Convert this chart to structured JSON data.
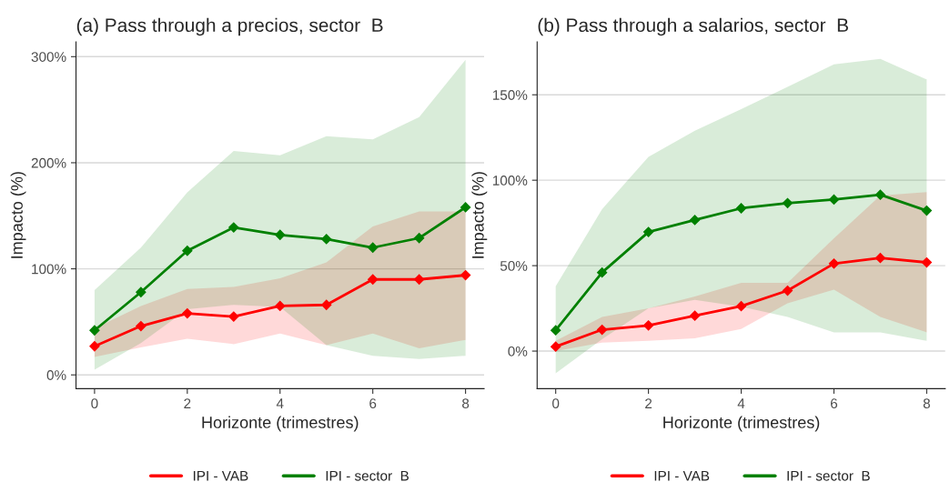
{
  "chart_data": [
    {
      "type": "line",
      "title": "(a) Pass through a precios, sector  B",
      "xlabel": "Horizonte (trimestres)",
      "ylabel": "Impacto (%)",
      "x": [
        0,
        1,
        2,
        3,
        4,
        5,
        6,
        7,
        8
      ],
      "series": [
        {
          "name": "IPI - VAB",
          "color": "#ff0000",
          "values": [
            27,
            46,
            58,
            55,
            65,
            66,
            90,
            90,
            94
          ],
          "lower": [
            17,
            26,
            34,
            29,
            39,
            28,
            39,
            25,
            33
          ],
          "upper": [
            44,
            65,
            81,
            83,
            91,
            106,
            140,
            154,
            154
          ]
        },
        {
          "name": "IPI - sector  B",
          "color": "#008000",
          "values": [
            42,
            78,
            117,
            139,
            132,
            128,
            120,
            129,
            158
          ],
          "lower": [
            5,
            30,
            62,
            66,
            64,
            28,
            18,
            15,
            18
          ],
          "upper": [
            80,
            120,
            172,
            211,
            207,
            225,
            222,
            243,
            297
          ]
        }
      ],
      "xlim": [
        -0.4,
        8.4
      ],
      "xticks": [
        0,
        2,
        4,
        6,
        8
      ],
      "ylim": [
        -13,
        314
      ],
      "yticks": [
        {
          "value": 0,
          "label": "0%"
        },
        {
          "value": 100,
          "label": "100%"
        },
        {
          "value": 200,
          "label": "200%"
        },
        {
          "value": 300,
          "label": "300%"
        }
      ],
      "grid": "y",
      "legend": "bottom",
      "marker": "diamond",
      "line_style": "solid"
    },
    {
      "type": "line",
      "title": "(b) Pass through a salarios, sector  B",
      "xlabel": "Horizonte (trimestres)",
      "ylabel": "Impacto (%)",
      "x": [
        0,
        1,
        2,
        3,
        4,
        5,
        6,
        7,
        8
      ],
      "series": [
        {
          "name": "IPI - VAB",
          "color": "#ff0000",
          "values": [
            2.6,
            12.5,
            15,
            20.7,
            26.3,
            35.4,
            51.2,
            54.5,
            51.9
          ],
          "lower": [
            0,
            5,
            6,
            7.5,
            13,
            28,
            36,
            20,
            11
          ],
          "upper": [
            6,
            20,
            25,
            32,
            40,
            40,
            66,
            91,
            93
          ]
        },
        {
          "name": "IPI - sector  B",
          "color": "#008000",
          "values": [
            12.2,
            46,
            69.7,
            76.7,
            83.6,
            86.6,
            88.7,
            91.5,
            82.2
          ],
          "lower": [
            -13,
            7,
            25,
            30,
            26,
            20,
            11,
            11,
            6
          ],
          "upper": [
            38,
            83,
            113.6,
            129,
            141.6,
            154.7,
            167.8,
            171,
            159
          ]
        }
      ],
      "xlim": [
        -0.4,
        8.4
      ],
      "xticks": [
        0,
        2,
        4,
        6,
        8
      ],
      "ylim": [
        -22,
        181
      ],
      "yticks": [
        {
          "value": 0,
          "label": "0%"
        },
        {
          "value": 50,
          "label": "50%"
        },
        {
          "value": 100,
          "label": "100%"
        },
        {
          "value": 150,
          "label": "150%"
        }
      ],
      "grid": "y",
      "legend": "bottom",
      "marker": "diamond",
      "line_style": "solid"
    }
  ]
}
